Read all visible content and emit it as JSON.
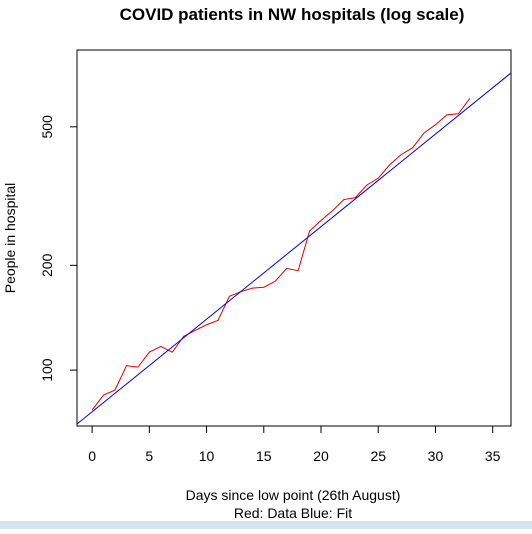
{
  "chart_data": {
    "type": "line",
    "title": "COVID patients in NW hospitals (log scale)",
    "x_label": "Days since low point (26th August)",
    "subtitle": "Red: Data    Blue: Fit",
    "y_label": "People in hospital",
    "log_y": true,
    "xlim": [
      -1.32,
      36.6
    ],
    "ylim": [
      69.1,
      831
    ],
    "xticks": [
      0,
      5,
      10,
      15,
      20,
      25,
      30,
      35
    ],
    "yticks": [
      100,
      200,
      500
    ],
    "series": [
      {
        "color": "#e00000",
        "x": [
          0,
          1,
          2,
          3,
          4,
          5,
          6,
          7,
          8,
          9,
          10,
          11,
          12,
          13,
          14,
          15,
          16,
          17,
          18,
          19,
          20,
          21,
          22,
          23,
          24,
          25,
          26,
          27,
          28,
          29,
          30,
          31,
          32,
          33
        ],
        "values": [
          76.8,
          84.8,
          87.6,
          103,
          102,
          112.6,
          117,
          112.6,
          125,
          130,
          135,
          139,
          163,
          168,
          172,
          173,
          180,
          196,
          193,
          251,
          269,
          287,
          309,
          313,
          340,
          356,
          389,
          416,
          435,
          480,
          507,
          541,
          545,
          603
        ]
      },
      {
        "color": "#0000e0",
        "x": [
          -1.32,
          36.6
        ],
        "values": [
          70,
          714
        ]
      }
    ]
  }
}
